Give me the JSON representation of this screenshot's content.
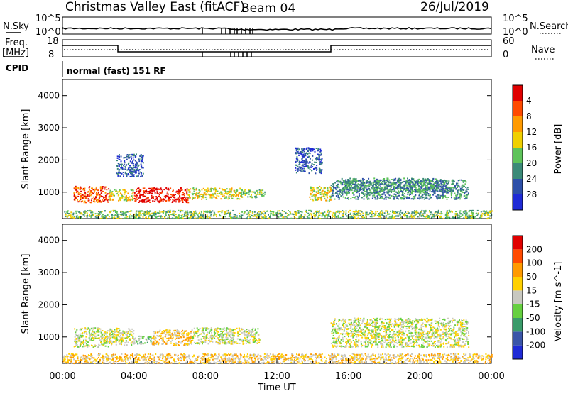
{
  "header": {
    "station": "Christmas Valley East (fitACF)",
    "beam": "Beam 04",
    "date": "26/Jul/2019"
  },
  "top_panels": {
    "nsky": {
      "label": "N.Sky",
      "ticks": [
        "10^5",
        "10^0"
      ]
    },
    "nsearch": {
      "label": "N.Search",
      "ticks": [
        "10^5",
        "10^0"
      ]
    },
    "freq": {
      "label_line1": "Freq.",
      "label_line2": "[MHz]",
      "ticks": [
        "18",
        "8"
      ]
    },
    "nave": {
      "label": "Nave",
      "ticks": [
        "60",
        "0"
      ]
    },
    "cpid": {
      "label": "CPID",
      "value": "normal (fast) 151 RF"
    }
  },
  "chart_data": [
    {
      "type": "heatmap",
      "name": "Power",
      "ylabel": "Slant Range [km]",
      "xlabel": "Time UT",
      "x_ticks": [
        "00:00",
        "04:00",
        "08:00",
        "12:00",
        "16:00",
        "20:00",
        "00:00"
      ],
      "y_ticks": [
        "1000",
        "2000",
        "3000",
        "4000"
      ],
      "ylim": [
        180,
        4500
      ],
      "colorbar": {
        "label": "Power [dB]",
        "ticks": [
          "4",
          "8",
          "12",
          "16",
          "20",
          "24",
          "28"
        ],
        "colors": [
          "#1f2bd6",
          "#2d4fa8",
          "#3b8a78",
          "#5ec35a",
          "#f0d000",
          "#ff9a00",
          "#ff4a00",
          "#e00000"
        ]
      },
      "scatter_regions": [
        {
          "t": [
            0.6,
            2.6
          ],
          "r": [
            700,
            1200
          ],
          "level": 6
        },
        {
          "t": [
            2.6,
            4.0
          ],
          "r": [
            750,
            1100
          ],
          "level": 4
        },
        {
          "t": [
            4.0,
            7.0
          ],
          "r": [
            700,
            1150
          ],
          "level": 7
        },
        {
          "t": [
            7.0,
            10.0
          ],
          "r": [
            800,
            1150
          ],
          "level": 4
        },
        {
          "t": [
            10.0,
            11.3
          ],
          "r": [
            850,
            1100
          ],
          "level": 3
        },
        {
          "t": [
            13.8,
            15.0
          ],
          "r": [
            750,
            1200
          ],
          "level": 4
        },
        {
          "t": [
            15.0,
            22.7
          ],
          "r": [
            800,
            1400
          ],
          "level": 2
        },
        {
          "t": [
            15.5,
            21.5
          ],
          "r": [
            1000,
            1450
          ],
          "level": 2
        },
        {
          "t": [
            3.0,
            4.5
          ],
          "r": [
            1500,
            2200
          ],
          "level": 1
        },
        {
          "t": [
            13.0,
            14.5
          ],
          "r": [
            1600,
            2400
          ],
          "level": 1
        },
        {
          "t": [
            0.0,
            24.0
          ],
          "r": [
            200,
            450
          ],
          "level": 3
        }
      ]
    },
    {
      "type": "heatmap",
      "name": "Velocity",
      "ylabel": "Slant Range [km]",
      "xlabel": "Time UT",
      "x_ticks": [
        "00:00",
        "04:00",
        "08:00",
        "12:00",
        "16:00",
        "20:00",
        "00:00"
      ],
      "y_ticks": [
        "1000",
        "2000",
        "3000",
        "4000"
      ],
      "ylim": [
        180,
        4500
      ],
      "colorbar": {
        "label": "Velocity [m s^-1]",
        "ticks": [
          "200",
          "100",
          "50",
          "15",
          "-15",
          "-50",
          "-100",
          "-200"
        ],
        "colors": [
          "#1f2bd6",
          "#3a55a8",
          "#3a9b6a",
          "#66d040",
          "#c8c8c0",
          "#ffd000",
          "#ff9a00",
          "#ff4a00",
          "#e00000"
        ]
      },
      "scatter_regions": [
        {
          "t": [
            0.6,
            2.6
          ],
          "r": [
            700,
            1300
          ],
          "level": 4
        },
        {
          "t": [
            2.6,
            4.0
          ],
          "r": [
            750,
            1300
          ],
          "level": 4
        },
        {
          "t": [
            4.0,
            5.0
          ],
          "r": [
            800,
            1050
          ],
          "level": 3
        },
        {
          "t": [
            5.0,
            7.2
          ],
          "r": [
            750,
            1250
          ],
          "level": 5
        },
        {
          "t": [
            7.2,
            11.0
          ],
          "r": [
            800,
            1300
          ],
          "level": 4
        },
        {
          "t": [
            15.0,
            22.7
          ],
          "r": [
            700,
            1600
          ],
          "level": 4
        },
        {
          "t": [
            0.0,
            24.0
          ],
          "r": [
            200,
            500
          ],
          "level": 5
        }
      ]
    }
  ]
}
